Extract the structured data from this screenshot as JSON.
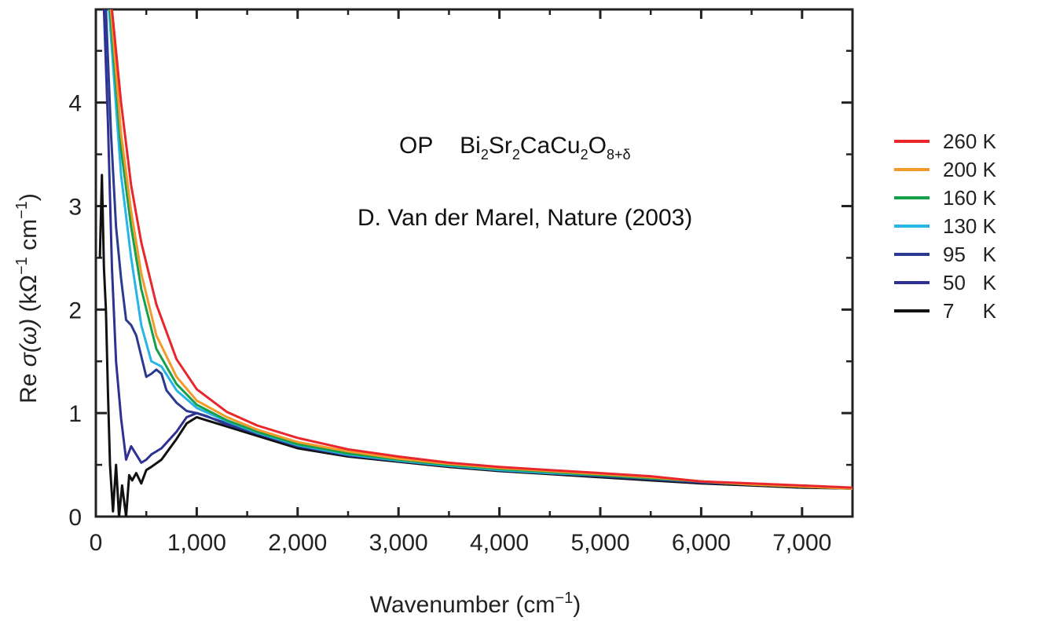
{
  "chart_data": {
    "type": "line",
    "xlabel_main": "Wavenumber (cm",
    "xlabel_sup": "−1",
    "xlabel_end": ")",
    "ylabel_parts": [
      "Re ",
      "σ(ω)",
      " (kΩ",
      "−1",
      " cm",
      "−1",
      ")"
    ],
    "xlim": [
      0,
      7500
    ],
    "ylim": [
      0,
      4.9
    ],
    "x_ticks": [
      0,
      1000,
      2000,
      3000,
      4000,
      5000,
      6000,
      7000
    ],
    "x_tick_labels": [
      "0",
      "1,000",
      "2,000",
      "3,000",
      "4,000",
      "5,000",
      "6,000",
      "7,000"
    ],
    "y_ticks": [
      0,
      1,
      2,
      3,
      4
    ],
    "y_tick_labels": [
      "0",
      "1",
      "2",
      "3",
      "4"
    ],
    "grid": false,
    "legend_position": "right",
    "annotations": {
      "compound_prefix": "OP",
      "compound": [
        {
          "t": "Bi",
          "s": "2"
        },
        {
          "t": "Sr",
          "s": "2"
        },
        {
          "t": "CaCu",
          "s": "2"
        },
        {
          "t": "O",
          "s": "8+δ"
        }
      ],
      "citation": "D. Van der Marel, Nature (2003)"
    },
    "series": [
      {
        "name": "260 K",
        "color": "#e8262b",
        "x": [
          160,
          250,
          350,
          450,
          600,
          800,
          1000,
          1300,
          1600,
          2000,
          2500,
          3000,
          3500,
          4000,
          4500,
          5000,
          5500,
          6000,
          6500,
          7000,
          7500
        ],
        "y": [
          4.9,
          4.0,
          3.2,
          2.65,
          2.05,
          1.52,
          1.23,
          1.01,
          0.88,
          0.76,
          0.65,
          0.58,
          0.52,
          0.48,
          0.45,
          0.42,
          0.39,
          0.34,
          0.32,
          0.3,
          0.28
        ]
      },
      {
        "name": "200 K",
        "color": "#f39a2b",
        "x": [
          150,
          250,
          350,
          450,
          600,
          800,
          1000,
          1300,
          1600,
          2000,
          2500,
          3000,
          3500,
          4000,
          4500,
          5000,
          5500,
          6000,
          6500,
          7000,
          7500
        ],
        "y": [
          4.9,
          3.7,
          2.95,
          2.35,
          1.75,
          1.35,
          1.12,
          0.96,
          0.84,
          0.72,
          0.63,
          0.56,
          0.51,
          0.47,
          0.44,
          0.41,
          0.38,
          0.34,
          0.31,
          0.29,
          0.27
        ]
      },
      {
        "name": "160 K",
        "color": "#17a04a",
        "x": [
          140,
          250,
          350,
          450,
          600,
          800,
          1000,
          1300,
          1600,
          2000,
          2500,
          3000,
          3500,
          4000,
          4500,
          5000,
          5500,
          6000,
          6500,
          7000,
          7500
        ],
        "y": [
          4.9,
          3.55,
          2.8,
          2.2,
          1.62,
          1.28,
          1.08,
          0.93,
          0.82,
          0.7,
          0.61,
          0.55,
          0.5,
          0.46,
          0.43,
          0.4,
          0.37,
          0.34,
          0.31,
          0.29,
          0.27
        ]
      },
      {
        "name": "130 K",
        "color": "#27b4e6",
        "x": [
          130,
          250,
          350,
          450,
          550,
          650,
          800,
          1000,
          1300,
          1600,
          2000,
          2500,
          3000,
          3500,
          4000,
          4500,
          5000,
          5500,
          6000,
          6500,
          7000,
          7500
        ],
        "y": [
          4.9,
          3.3,
          2.5,
          1.85,
          1.5,
          1.45,
          1.22,
          1.05,
          0.92,
          0.81,
          0.69,
          0.6,
          0.54,
          0.49,
          0.45,
          0.42,
          0.4,
          0.37,
          0.34,
          0.31,
          0.29,
          0.27
        ]
      },
      {
        "name": "95   K",
        "color": "#2b3990",
        "x": [
          100,
          150,
          200,
          250,
          300,
          350,
          400,
          450,
          500,
          550,
          600,
          650,
          700,
          800,
          900,
          1000,
          1300,
          1600,
          2000,
          2500,
          3000,
          3500,
          4000,
          4500,
          5000,
          5500,
          6000,
          6500,
          7000,
          7500
        ],
        "y": [
          4.9,
          3.7,
          2.8,
          2.3,
          1.9,
          1.85,
          1.75,
          1.55,
          1.35,
          1.38,
          1.42,
          1.38,
          1.22,
          1.1,
          1.02,
          1.0,
          0.9,
          0.8,
          0.68,
          0.6,
          0.54,
          0.49,
          0.45,
          0.42,
          0.39,
          0.37,
          0.33,
          0.31,
          0.29,
          0.27
        ]
      },
      {
        "name": "50   K",
        "color": "#2e3192",
        "x": [
          80,
          120,
          160,
          200,
          250,
          300,
          350,
          400,
          450,
          500,
          550,
          650,
          800,
          900,
          1000,
          1100,
          1300,
          1600,
          2000,
          2500,
          3000,
          3500,
          4000,
          4500,
          5000,
          5500,
          6000,
          6500,
          7000,
          7500
        ],
        "y": [
          4.9,
          3.8,
          2.4,
          1.5,
          0.95,
          0.55,
          0.68,
          0.6,
          0.52,
          0.55,
          0.6,
          0.66,
          0.82,
          0.96,
          1.0,
          0.97,
          0.89,
          0.8,
          0.68,
          0.59,
          0.54,
          0.49,
          0.45,
          0.42,
          0.39,
          0.36,
          0.33,
          0.31,
          0.29,
          0.27
        ]
      },
      {
        "name": "7     K",
        "color": "#111111",
        "x": [
          40,
          60,
          80,
          100,
          120,
          140,
          170,
          200,
          230,
          260,
          300,
          330,
          360,
          400,
          450,
          500,
          550,
          650,
          800,
          900,
          1000,
          1100,
          1300,
          1600,
          2000,
          2500,
          3000,
          3500,
          4000,
          4500,
          5000,
          5500,
          6000,
          6500,
          7000,
          7500
        ],
        "y": [
          2.5,
          3.3,
          2.4,
          2.0,
          1.2,
          0.5,
          0.05,
          0.5,
          0.0,
          0.3,
          0.0,
          0.4,
          0.35,
          0.42,
          0.32,
          0.45,
          0.48,
          0.55,
          0.75,
          0.9,
          0.96,
          0.93,
          0.87,
          0.78,
          0.66,
          0.58,
          0.53,
          0.48,
          0.44,
          0.41,
          0.38,
          0.35,
          0.32,
          0.3,
          0.28,
          0.27
        ]
      }
    ]
  }
}
